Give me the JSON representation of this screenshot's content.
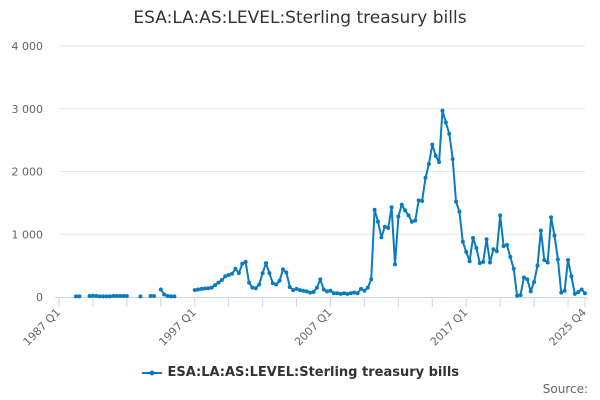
{
  "chart_data": {
    "type": "line",
    "title": "ESA:LA:AS:LEVEL:Sterling treasury bills",
    "xlabel": "",
    "ylabel": "",
    "frequency": "quarterly",
    "xlim": [
      "1987 Q1",
      "2025 Q4"
    ],
    "x_tick_labels": [
      "1987 Q1",
      "1997 Q1",
      "2007 Q1",
      "2017 Q1",
      "2025 Q4"
    ],
    "ylim": [
      0,
      4000
    ],
    "y_tick_labels": [
      "0",
      "1 000",
      "2 000",
      "3 000",
      "4 000"
    ],
    "grid": true,
    "legend_placement": "bottom",
    "series": [
      {
        "name": "ESA:LA:AS:LEVEL:Sterling treasury bills",
        "color": "#0a7bbf",
        "values": [
          null,
          null,
          null,
          null,
          null,
          10,
          10,
          null,
          null,
          15,
          20,
          15,
          10,
          10,
          10,
          10,
          15,
          15,
          15,
          15,
          15,
          null,
          null,
          null,
          10,
          null,
          null,
          15,
          15,
          null,
          120,
          40,
          15,
          10,
          10,
          null,
          null,
          null,
          null,
          null,
          110,
          120,
          130,
          135,
          140,
          150,
          190,
          230,
          270,
          330,
          350,
          370,
          450,
          380,
          530,
          560,
          230,
          150,
          140,
          200,
          380,
          540,
          380,
          220,
          200,
          260,
          440,
          390,
          160,
          110,
          130,
          110,
          100,
          90,
          70,
          80,
          150,
          280,
          120,
          90,
          100,
          60,
          60,
          50,
          60,
          50,
          60,
          70,
          60,
          130,
          100,
          150,
          280,
          1390,
          1200,
          950,
          1120,
          1100,
          1430,
          520,
          1280,
          1470,
          1380,
          1300,
          1200,
          1220,
          1540,
          1530,
          1900,
          2120,
          2430,
          2250,
          2150,
          2970,
          2780,
          2600,
          2200,
          1520,
          1360,
          880,
          720,
          570,
          940,
          780,
          540,
          560,
          920,
          550,
          760,
          730,
          1300,
          810,
          830,
          640,
          450,
          20,
          30,
          310,
          280,
          90,
          240,
          500,
          1060,
          590,
          550,
          1270,
          980,
          600,
          70,
          100,
          590,
          330,
          50,
          80,
          120,
          60
        ]
      }
    ],
    "source_label": "Source:"
  }
}
